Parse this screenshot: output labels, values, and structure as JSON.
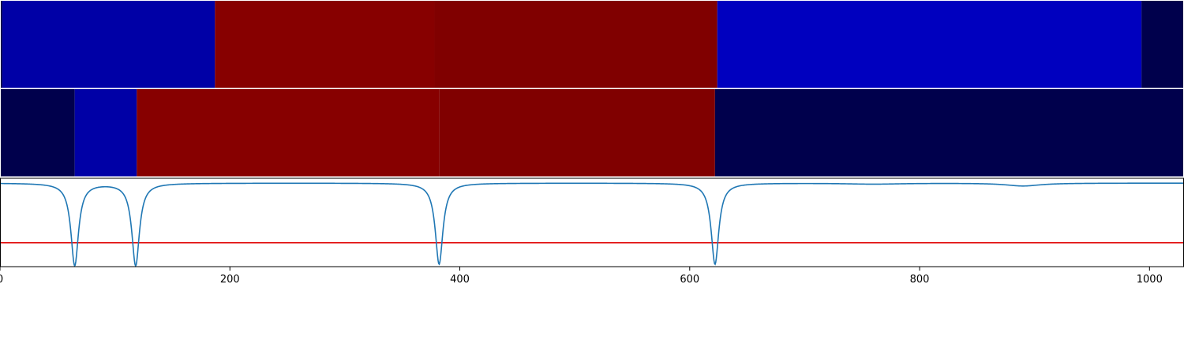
{
  "chart_data": {
    "type": "heatmap",
    "title": "",
    "xlabel": "",
    "ylabel": "",
    "xlim": [
      0,
      1030
    ],
    "xticks": [
      0,
      200,
      400,
      600,
      800,
      1000
    ],
    "xtick_labels": [
      "0",
      "200",
      "400",
      "600",
      "800",
      "1000"
    ],
    "grid": false,
    "segment_rows": [
      {
        "segments": [
          {
            "start": 0,
            "end": 2,
            "color": "#00004c"
          },
          {
            "start": 2,
            "end": 187,
            "color": "#0000a6"
          },
          {
            "start": 187,
            "end": 378,
            "color": "#870000"
          },
          {
            "start": 378,
            "end": 624,
            "color": "#800000"
          },
          {
            "start": 624,
            "end": 993,
            "color": "#0000bf"
          },
          {
            "start": 993,
            "end": 1030,
            "color": "#00004c"
          }
        ]
      },
      {
        "segments": [
          {
            "start": 0,
            "end": 65,
            "color": "#00004c"
          },
          {
            "start": 65,
            "end": 119,
            "color": "#0000a6"
          },
          {
            "start": 119,
            "end": 382,
            "color": "#870000"
          },
          {
            "start": 382,
            "end": 622,
            "color": "#800000"
          },
          {
            "start": 622,
            "end": 1030,
            "color": "#00004c"
          }
        ]
      }
    ],
    "line_panel": {
      "ylim": [
        -3.5,
        0.2
      ],
      "threshold": -2.5,
      "threshold_color": "#e00000",
      "line_color": "#1f77b4",
      "dips": [
        {
          "center": 65,
          "depth": 3.45,
          "width": 4
        },
        {
          "center": 118,
          "depth": 3.45,
          "width": 4
        },
        {
          "center": 382,
          "depth": 3.4,
          "width": 4
        },
        {
          "center": 622,
          "depth": 3.4,
          "width": 4
        },
        {
          "center": 890,
          "depth": 0.12,
          "width": 18
        },
        {
          "center": 760,
          "depth": 0.04,
          "width": 30
        }
      ]
    }
  }
}
